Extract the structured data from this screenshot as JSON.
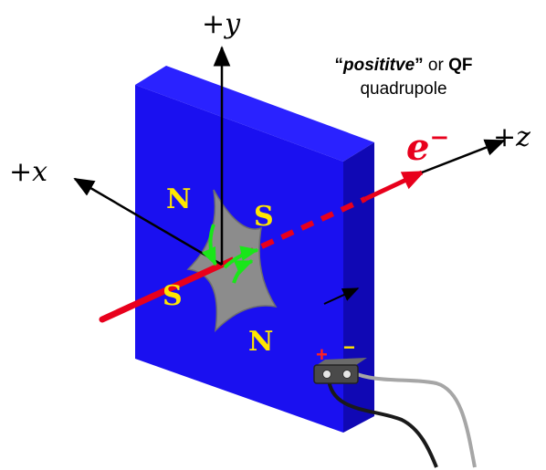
{
  "caption": {
    "quote_open": "“",
    "word_italic": "posititve",
    "quote_close": "”",
    "or_text": " or ",
    "qf": "QF",
    "line2": "quadrupole"
  },
  "axes": {
    "y": {
      "sign": "+",
      "var": "y"
    },
    "x": {
      "sign": "+",
      "var": "x"
    },
    "z": {
      "sign": "+",
      "var": "z"
    }
  },
  "beam": {
    "symbol": "e",
    "charge": "−"
  },
  "poles": {
    "top_left": "N",
    "top_right": "S",
    "bottom_left": "S",
    "bottom_right": "N"
  },
  "terminals": {
    "plus": "+",
    "minus": "−"
  },
  "colors": {
    "magnet_face": "#1a10f0",
    "magnet_side": "#1008b4",
    "magnet_top": "#2a22ff",
    "pole_piece": "#8c8c8c",
    "pole_label": "#ffe600",
    "field_arrows": "#19e619",
    "beam": "#e8001c",
    "axes": "#000000"
  }
}
